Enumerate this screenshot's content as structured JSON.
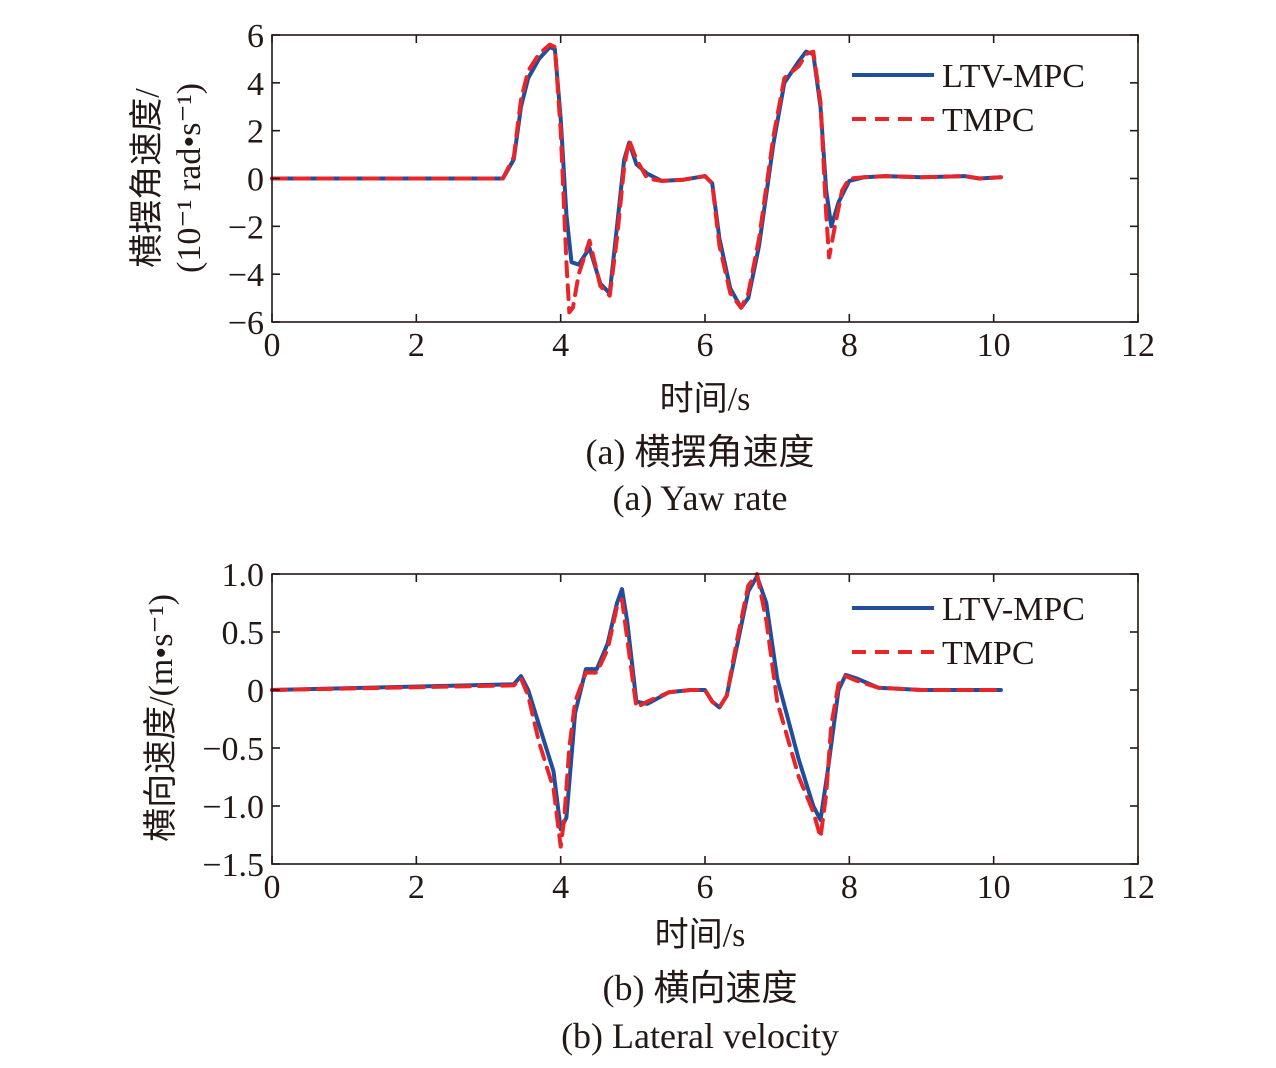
{
  "chart_data": [
    {
      "type": "line",
      "title": "",
      "xlabel": "时间/s",
      "ylabel_line1": "横摆角速度/",
      "ylabel_line2": "(10⁻¹ rad•s⁻¹)",
      "xlim": [
        0,
        12
      ],
      "ylim": [
        -6,
        6
      ],
      "xticks": [
        "0",
        "2",
        "4",
        "6",
        "8",
        "10",
        "12"
      ],
      "yticks": [
        "6",
        "4",
        "2",
        "0",
        "−2",
        "−4",
        "−6"
      ],
      "legend_position": "top-right",
      "caption_cn": "(a) 横摆角速度",
      "caption_en": "(a) Yaw rate",
      "series": [
        {
          "name": "LTV-MPC",
          "color": "#1f4e9c",
          "style": "solid",
          "x": [
            0,
            3.2,
            3.35,
            3.45,
            3.55,
            3.7,
            3.85,
            3.92,
            4.0,
            4.08,
            4.15,
            4.25,
            4.4,
            4.55,
            4.68,
            4.78,
            4.88,
            4.95,
            5.05,
            5.2,
            5.4,
            5.7,
            6.0,
            6.1,
            6.2,
            6.35,
            6.5,
            6.6,
            6.75,
            6.95,
            7.1,
            7.3,
            7.4,
            7.5,
            7.6,
            7.68,
            7.75,
            7.85,
            8.0,
            8.2,
            8.5,
            9.0,
            9.6,
            9.8,
            10.1
          ],
          "y": [
            0,
            0,
            0.8,
            3.0,
            4.2,
            5.0,
            5.5,
            5.4,
            2.5,
            -1.5,
            -3.5,
            -3.6,
            -2.9,
            -4.4,
            -4.8,
            -2.0,
            0.8,
            1.5,
            0.6,
            0.2,
            -0.1,
            -0.05,
            0.1,
            -0.2,
            -2.5,
            -4.6,
            -5.4,
            -5.0,
            -2.8,
            1.5,
            4.0,
            4.9,
            5.3,
            5.2,
            3.0,
            -0.5,
            -2.0,
            -1.0,
            -0.1,
            0.05,
            0.1,
            0.05,
            0.1,
            0.0,
            0.05
          ]
        },
        {
          "name": "TMPC",
          "color": "#e8262a",
          "style": "dashed",
          "x": [
            0,
            3.2,
            3.35,
            3.45,
            3.55,
            3.7,
            3.85,
            3.92,
            4.0,
            4.08,
            4.12,
            4.17,
            4.25,
            4.4,
            4.55,
            4.68,
            4.78,
            4.88,
            4.95,
            5.05,
            5.2,
            5.4,
            5.7,
            6.0,
            6.1,
            6.2,
            6.35,
            6.5,
            6.6,
            6.75,
            6.95,
            7.1,
            7.3,
            7.4,
            7.5,
            7.6,
            7.68,
            7.72,
            7.8,
            7.9,
            8.0,
            8.2,
            8.5,
            9.0,
            9.6,
            9.8,
            10.1
          ],
          "y": [
            0,
            0,
            0.9,
            3.3,
            4.5,
            5.2,
            5.6,
            5.5,
            2.0,
            -3.5,
            -5.6,
            -5.4,
            -4.0,
            -2.6,
            -4.5,
            -4.9,
            -2.5,
            0.5,
            1.6,
            0.8,
            0.0,
            -0.1,
            -0.05,
            0.1,
            -0.2,
            -2.8,
            -4.8,
            -5.4,
            -4.8,
            -2.5,
            1.8,
            4.2,
            4.7,
            5.2,
            5.3,
            3.2,
            -1.5,
            -3.3,
            -2.0,
            -0.5,
            0.0,
            0.05,
            0.1,
            0.05,
            0.1,
            0.0,
            0.05
          ]
        }
      ]
    },
    {
      "type": "line",
      "title": "",
      "xlabel": "时间/s",
      "ylabel_line1": "横向速度/(m•s⁻¹)",
      "xlim": [
        0,
        12
      ],
      "ylim": [
        -1.5,
        1.0
      ],
      "xticks": [
        "0",
        "2",
        "4",
        "6",
        "8",
        "10",
        "12"
      ],
      "yticks": [
        "1.0",
        "0.5",
        "0",
        "−0.5",
        "−1.0",
        "−1.5"
      ],
      "legend_position": "top-right",
      "caption_cn": "(b) 横向速度",
      "caption_en": "(b) Lateral velocity",
      "series": [
        {
          "name": "LTV-MPC",
          "color": "#1f4e9c",
          "style": "solid",
          "x": [
            0,
            3.35,
            3.45,
            3.55,
            3.7,
            3.9,
            4.0,
            4.08,
            4.2,
            4.35,
            4.5,
            4.65,
            4.78,
            4.85,
            4.92,
            5.05,
            5.2,
            5.5,
            5.8,
            6.0,
            6.1,
            6.2,
            6.3,
            6.45,
            6.6,
            6.72,
            6.85,
            7.0,
            7.3,
            7.5,
            7.6,
            7.7,
            7.85,
            7.95,
            8.1,
            8.4,
            9.0,
            9.6,
            10.1
          ],
          "y": [
            0,
            0.05,
            0.12,
            0.0,
            -0.3,
            -0.7,
            -1.2,
            -1.1,
            -0.2,
            0.18,
            0.18,
            0.4,
            0.75,
            0.87,
            0.6,
            -0.1,
            -0.12,
            -0.02,
            0.0,
            0.0,
            -0.1,
            -0.15,
            -0.05,
            0.4,
            0.85,
            0.98,
            0.75,
            0.1,
            -0.6,
            -1.0,
            -1.12,
            -0.7,
            0.0,
            0.13,
            0.1,
            0.02,
            0.0,
            0.0,
            0.0
          ]
        },
        {
          "name": "TMPC",
          "color": "#e8262a",
          "style": "dashed",
          "x": [
            0,
            3.35,
            3.45,
            3.55,
            3.7,
            3.9,
            4.0,
            4.05,
            4.12,
            4.2,
            4.35,
            4.5,
            4.65,
            4.78,
            4.85,
            4.92,
            5.05,
            5.2,
            5.5,
            5.8,
            6.0,
            6.1,
            6.2,
            6.3,
            6.45,
            6.6,
            6.72,
            6.85,
            7.0,
            7.3,
            7.5,
            7.6,
            7.68,
            7.75,
            7.85,
            7.95,
            8.1,
            8.4,
            9.0,
            9.6,
            10.1
          ],
          "y": [
            0,
            0.04,
            0.1,
            -0.05,
            -0.45,
            -0.85,
            -1.35,
            -1.1,
            -0.5,
            -0.1,
            0.15,
            0.15,
            0.35,
            0.72,
            0.78,
            0.45,
            -0.15,
            -0.1,
            -0.02,
            0.0,
            0.0,
            -0.1,
            -0.15,
            -0.05,
            0.45,
            0.9,
            1.0,
            0.6,
            -0.1,
            -0.75,
            -1.05,
            -1.27,
            -0.9,
            -0.3,
            0.05,
            0.12,
            0.08,
            0.02,
            0.0,
            0.0,
            0.0
          ]
        }
      ]
    }
  ]
}
